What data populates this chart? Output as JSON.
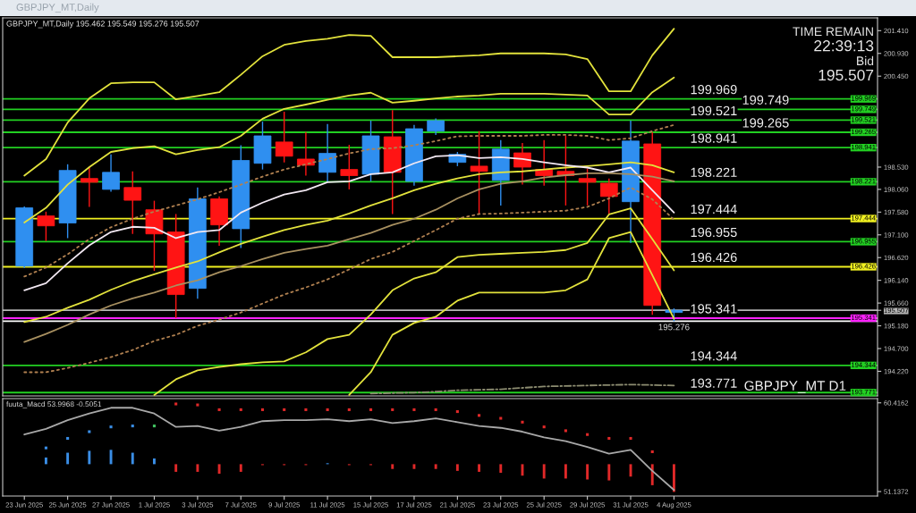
{
  "chart_data": [
    {
      "type": "candlestick",
      "title": "GBPJPY_MT,Daily",
      "subtitle": "GBPJPY_MT,Daily 195.462 195.549 195.276 195.507",
      "categories": [
        null,
        null,
        null,
        null,
        null,
        null,
        null,
        null,
        null,
        null,
        null,
        null,
        null,
        null,
        null,
        null,
        null,
        null,
        null,
        null,
        null,
        null,
        null,
        null,
        null,
        null,
        null,
        null,
        null,
        null,
        null
      ],
      "ohlc": [
        [
          196.44,
          197.7,
          196.4,
          197.67
        ],
        [
          197.5,
          197.59,
          196.97,
          197.29
        ],
        [
          197.35,
          198.59,
          197.03,
          198.46
        ],
        [
          198.29,
          198.53,
          197.69,
          198.21
        ],
        [
          198.06,
          198.8,
          198.01,
          198.42
        ],
        [
          198.1,
          198.44,
          197.12,
          197.83
        ],
        [
          197.63,
          197.82,
          196.34,
          197.12
        ],
        [
          197.16,
          197.54,
          195.34,
          195.84
        ],
        [
          195.97,
          198.1,
          195.75,
          197.86
        ],
        [
          197.86,
          197.91,
          196.87,
          197.31
        ],
        [
          197.23,
          198.99,
          196.82,
          198.67
        ],
        [
          198.61,
          199.49,
          198.48,
          199.19
        ],
        [
          199.06,
          199.7,
          198.63,
          198.76
        ],
        [
          198.7,
          199.27,
          198.35,
          198.57
        ],
        [
          198.42,
          199.44,
          198.21,
          198.82
        ],
        [
          198.48,
          199.0,
          198.06,
          198.35
        ],
        [
          198.38,
          199.51,
          198.23,
          199.19
        ],
        [
          199.17,
          199.73,
          197.54,
          198.42
        ],
        [
          198.23,
          199.42,
          198.14,
          199.34
        ],
        [
          199.29,
          199.56,
          199.21,
          199.51
        ],
        [
          198.63,
          198.85,
          198.55,
          198.8
        ],
        [
          198.55,
          199.29,
          197.54,
          198.44
        ],
        [
          198.25,
          199.1,
          197.72,
          198.91
        ],
        [
          198.83,
          199.04,
          198.16,
          198.53
        ],
        [
          198.48,
          199.1,
          198.14,
          198.35
        ],
        [
          198.44,
          199.19,
          197.72,
          198.35
        ],
        [
          198.29,
          198.5,
          197.72,
          198.21
        ],
        [
          198.19,
          198.29,
          197.54,
          197.91
        ],
        [
          197.8,
          199.51,
          196.93,
          199.08
        ],
        [
          199.02,
          199.27,
          195.41,
          195.61
        ],
        [
          195.462,
          195.549,
          195.276,
          195.507
        ]
      ],
      "colors": [
        "#2f8ff0",
        "#ff1414",
        "#2f8ff0",
        "#ff1414",
        "#2f8ff0",
        "#ff1414",
        "#ff1414",
        "#ff1414",
        "#2f8ff0",
        "#ff1414",
        "#2f8ff0",
        "#2f8ff0",
        "#ff1414",
        "#ff1414",
        "#2f8ff0",
        "#ff1414",
        "#2f8ff0",
        "#ff1414",
        "#2f8ff0",
        "#2f8ff0",
        "#2f8ff0",
        "#ff1414",
        "#2f8ff0",
        "#ff1414",
        "#ff1414",
        "#ff1414",
        "#ff1414",
        "#ff1414",
        "#2f8ff0",
        "#ff1414",
        "#2f8ff0"
      ],
      "series": [
        {
          "type": "line",
          "color": "#e2e23c",
          "values": [
            198.35,
            198.7,
            199.47,
            199.98,
            200.3,
            200.32,
            200.32,
            199.96,
            200.03,
            200.11,
            200.48,
            200.87,
            201.11,
            201.19,
            201.24,
            201.32,
            201.3,
            200.85,
            200.85,
            200.85,
            200.87,
            200.89,
            200.93,
            200.93,
            200.93,
            200.91,
            200.81,
            200.13,
            200.13,
            200.89,
            201.45
          ]
        },
        {
          "type": "line",
          "color": "#e2e23c",
          "values": [
            197.36,
            197.67,
            198.16,
            198.53,
            198.85,
            198.93,
            198.97,
            198.8,
            198.89,
            198.95,
            199.19,
            199.55,
            199.76,
            199.85,
            199.95,
            200.04,
            200.1,
            199.89,
            199.93,
            199.98,
            200.02,
            200.04,
            200.08,
            200.08,
            200.08,
            200.06,
            200.04,
            199.64,
            199.64,
            200.11,
            200.42
          ]
        },
        {
          "type": "line",
          "color": "#b08050",
          "line_style": "dotted",
          "values": [
            196.22,
            196.41,
            196.69,
            197.01,
            197.26,
            197.44,
            197.59,
            197.72,
            197.85,
            198.0,
            198.16,
            198.33,
            198.48,
            198.59,
            198.7,
            198.82,
            198.91,
            198.93,
            198.99,
            199.08,
            199.18,
            199.19,
            199.19,
            199.19,
            199.21,
            199.21,
            199.19,
            199.1,
            199.14,
            199.29,
            199.42
          ]
        },
        {
          "type": "line",
          "color": "#e2e23c",
          "values": [
            195.26,
            195.37,
            195.56,
            195.73,
            195.94,
            196.12,
            196.27,
            196.41,
            196.54,
            196.73,
            196.91,
            197.06,
            197.2,
            197.31,
            197.4,
            197.55,
            197.72,
            197.87,
            198.04,
            198.18,
            198.29,
            198.38,
            198.42,
            198.44,
            198.48,
            198.52,
            198.55,
            198.59,
            198.63,
            198.57,
            198.42
          ]
        },
        {
          "type": "line",
          "color": "#b08050",
          "line_style": "dotted",
          "values": [
            194.2,
            194.2,
            194.29,
            194.4,
            194.52,
            194.67,
            194.86,
            194.99,
            195.18,
            195.31,
            195.46,
            195.65,
            195.84,
            195.99,
            196.16,
            196.37,
            196.59,
            196.74,
            196.97,
            197.2,
            197.44,
            197.54,
            197.55,
            197.57,
            197.59,
            197.61,
            197.69,
            197.87,
            198.1,
            197.85,
            197.42
          ]
        },
        {
          "type": "line",
          "color": "#e2e23c",
          "values": [
            null,
            null,
            null,
            null,
            null,
            null,
            193.72,
            194.05,
            194.24,
            194.31,
            194.37,
            194.41,
            194.43,
            194.62,
            194.9,
            194.99,
            195.42,
            195.93,
            196.18,
            196.31,
            196.63,
            196.68,
            196.7,
            196.72,
            196.74,
            196.78,
            196.93,
            197.53,
            197.66,
            197.01,
            196.35
          ]
        },
        {
          "type": "line",
          "color": "#e2e23c",
          "values": [
            null,
            null,
            null,
            null,
            null,
            null,
            null,
            null,
            null,
            null,
            null,
            null,
            null,
            null,
            null,
            193.72,
            194.2,
            194.99,
            195.24,
            195.37,
            195.71,
            195.88,
            195.88,
            195.88,
            195.88,
            195.93,
            196.16,
            197.03,
            197.16,
            196.25,
            195.33
          ]
        },
        {
          "type": "line",
          "color": "#f2e8f2",
          "values": [
            195.93,
            196.08,
            196.5,
            196.88,
            197.16,
            197.27,
            197.25,
            197.03,
            197.16,
            197.2,
            197.57,
            197.78,
            197.95,
            198.04,
            198.21,
            198.23,
            198.38,
            198.42,
            198.61,
            198.76,
            198.78,
            198.72,
            198.74,
            198.7,
            198.63,
            198.57,
            198.52,
            198.42,
            198.52,
            198.04,
            197.57
          ]
        },
        {
          "type": "line",
          "color": "#a89060",
          "values": [
            194.84,
            195.01,
            195.2,
            195.42,
            195.61,
            195.76,
            195.88,
            196.03,
            196.14,
            196.31,
            196.44,
            196.59,
            196.72,
            196.8,
            196.87,
            197.01,
            197.14,
            197.31,
            197.44,
            197.63,
            197.87,
            198.06,
            198.18,
            198.23,
            198.31,
            198.36,
            198.4,
            198.4,
            198.38,
            198.33,
            198.23
          ]
        },
        {
          "type": "line",
          "color": "#8c8c70",
          "line_style": "dashed",
          "values": [
            null,
            null,
            null,
            null,
            null,
            null,
            null,
            null,
            null,
            null,
            null,
            null,
            null,
            null,
            null,
            null,
            193.75,
            193.76,
            193.77,
            193.79,
            193.82,
            193.83,
            193.84,
            193.87,
            193.9,
            193.91,
            193.92,
            193.93,
            193.94,
            193.93,
            193.92
          ]
        }
      ],
      "ylim": [
        193.7,
        201.68
      ],
      "yticks": [
        {
          "value": 201.41,
          "label": "201.410"
        },
        {
          "value": 200.93,
          "label": "200.930"
        },
        {
          "value": 200.45,
          "label": "200.450"
        },
        {
          "value": 198.53,
          "label": "198.530"
        },
        {
          "value": 198.06,
          "label": "198.060"
        },
        {
          "value": 197.58,
          "label": "197.580"
        },
        {
          "value": 197.1,
          "label": "197.100"
        },
        {
          "value": 196.62,
          "label": "196.620"
        },
        {
          "value": 196.14,
          "label": "196.140"
        },
        {
          "value": 195.66,
          "label": "195.660"
        },
        {
          "value": 195.507,
          "label": "195.507"
        },
        {
          "value": 195.18,
          "label": "195.180"
        },
        {
          "value": 194.7,
          "label": "194.700"
        },
        {
          "value": 194.22,
          "label": "194.220"
        }
      ],
      "tick_labels": "y",
      "ref_lines": [
        {
          "axis": "y",
          "value": 199.969,
          "label": "199.969",
          "color": "#22d022"
        },
        {
          "axis": "y",
          "value": 199.749,
          "label": "199.749",
          "color": "#22d022"
        },
        {
          "axis": "y",
          "value": 199.521,
          "label": "199.521",
          "color": "#22d022"
        },
        {
          "axis": "y",
          "value": 199.265,
          "label": "199.265",
          "color": "#22d022"
        },
        {
          "axis": "y",
          "value": 198.941,
          "label": "198.941",
          "color": "#22d022"
        },
        {
          "axis": "y",
          "value": 198.221,
          "label": "198.221",
          "color": "#22d022"
        },
        {
          "axis": "y",
          "value": 197.444,
          "label": "197.444",
          "color": "#f0f020"
        },
        {
          "axis": "y",
          "value": 196.955,
          "label": "196.955",
          "color": "#22d022"
        },
        {
          "axis": "y",
          "value": 196.426,
          "label": "196.426",
          "color": "#f0f020"
        },
        {
          "axis": "y",
          "value": 195.341,
          "label": "195.341",
          "color": "#ff22ff"
        },
        {
          "axis": "y",
          "value": 194.344,
          "label": "194.344",
          "color": "#22d022"
        },
        {
          "axis": "y",
          "value": 193.771,
          "label": "193.771",
          "color": "#22d022"
        },
        {
          "axis": "y",
          "value": 195.507,
          "color": "#b4b4b4"
        },
        {
          "axis": "y",
          "value": 195.276,
          "color": "#ffffff"
        }
      ],
      "annotations": [
        {
          "text": "195.276",
          "y": 195.276
        },
        "TIME REMAIN",
        "22:39:13",
        "Bid",
        "195.507",
        "GBPJPY_MT D1"
      ]
    },
    {
      "type": "bar",
      "title": "fuuta_Macd 53.9968 -0.5051",
      "categories": [
        "23 Jun 2025",
        null,
        "25 Jun 2025",
        null,
        "27 Jun 2025",
        null,
        "1 Jul 2025",
        null,
        "3 Jul 2025",
        null,
        "7 Jul 2025",
        null,
        "9 Jul 2025",
        null,
        "11 Jul 2025",
        null,
        "15 Jul 2025",
        null,
        "17 Jul 2025",
        null,
        "21 Jul 2025",
        null,
        "23 Jul 2025",
        null,
        "25 Jul 2025",
        null,
        "29 Jul 2025",
        null,
        "31 Jul 2025",
        null,
        "4 Aug 2025"
      ],
      "series": [
        {
          "type": "bar",
          "values": [
            null,
            0.7,
            1.2,
            1.4,
            1.5,
            1.2,
            0.6,
            -0.8,
            -0.8,
            -1.0,
            -0.8,
            -0.1,
            -0.1,
            -0.1,
            0.1,
            -0.1,
            -0.1,
            -0.5,
            -0.5,
            -0.5,
            -0.7,
            -0.8,
            -0.9,
            -1.2,
            -1.5,
            -1.5,
            -1.6,
            -1.7,
            -1.3,
            -2.2,
            -2.9
          ],
          "base": [
            null,
            54.0,
            54.0,
            54.0,
            54.0,
            54.0,
            54.0,
            54.0,
            54.0,
            54.0,
            54.0,
            54.0,
            54.0,
            54.0,
            54.0,
            54.0,
            54.0,
            54.0,
            54.0,
            54.0,
            54.0,
            54.0,
            54.0,
            54.0,
            54.0,
            54.0,
            54.0,
            54.0,
            54.0,
            54.0,
            54.0
          ],
          "colors": [
            "#3a8ee6",
            "#3a8ee6",
            "#3a8ee6",
            "#3a8ee6",
            "#3a8ee6",
            "#3a8ee6",
            "#3a8ee6",
            "#e02828",
            "#e02828",
            "#e02828",
            "#e02828",
            "#e02828",
            "#e02828",
            "#e02828",
            "#3a8ee6",
            "#e02828",
            "#e02828",
            "#e02828",
            "#e02828",
            "#e02828",
            "#e02828",
            "#e02828",
            "#e02828",
            "#e02828",
            "#e02828",
            "#e02828",
            "#e02828",
            "#e02828",
            "#e02828",
            "#e02828",
            "#e02828"
          ]
        },
        {
          "type": "line",
          "color": "#a8a8a8",
          "values": [
            57.1,
            57.7,
            58.6,
            59.3,
            59.9,
            59.9,
            59.3,
            57.9,
            58.0,
            57.5,
            57.9,
            58.5,
            58.6,
            58.6,
            58.7,
            58.5,
            58.7,
            58.3,
            58.5,
            58.8,
            58.4,
            58.0,
            57.8,
            57.4,
            56.8,
            56.4,
            55.8,
            55.1,
            55.5,
            53.3,
            51.3
          ]
        },
        {
          "type": "scatter",
          "marker": "square",
          "values": [
            null,
            55.7,
            56.7,
            57.4,
            57.9,
            58.0,
            58.0,
            60.3,
            60.2,
            59.7,
            59.7,
            59.7,
            59.7,
            59.7,
            59.7,
            59.7,
            59.7,
            59.7,
            59.7,
            59.7,
            59.5,
            59.1,
            58.8,
            58.4,
            57.9,
            57.5,
            57.1,
            56.7,
            56.7,
            55.3,
            null
          ],
          "colors": [
            "#3a8ee6",
            "#3a8ee6",
            "#3a8ee6",
            "#3a8ee6",
            "#3a8ee6",
            "#3a8ee6",
            "#40c060",
            "#e02828",
            "#e02828",
            "#e02828",
            "#e02828",
            "#e02828",
            "#e02828",
            "#e02828",
            "#e02828",
            "#e02828",
            "#e02828",
            "#e02828",
            "#e02828",
            "#e02828",
            "#e02828",
            "#e02828",
            "#e02828",
            "#e02828",
            "#e02828",
            "#e02828",
            "#e02828",
            "#e02828",
            "#e02828",
            "#e02828",
            "#e02828"
          ]
        }
      ],
      "ylim": [
        50.67,
        60.86
      ],
      "yticks": [
        60.4162,
        51.1372
      ]
    }
  ]
}
